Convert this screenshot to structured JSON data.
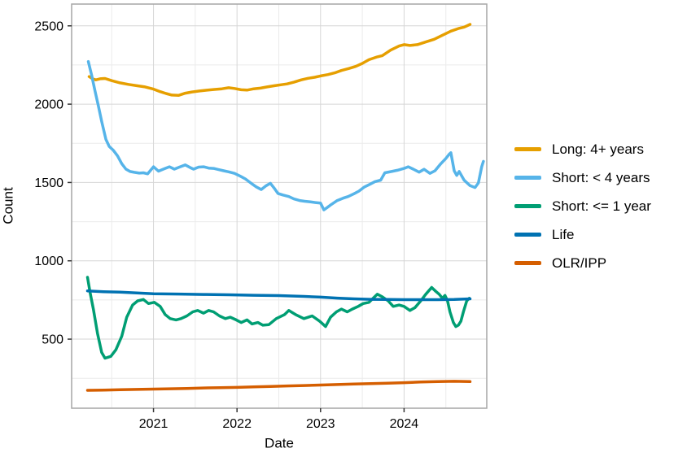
{
  "chart_data": {
    "type": "line",
    "title": "",
    "xlabel": "Date",
    "ylabel": "Count",
    "x_ticks": [
      2021,
      2022,
      2023,
      2024
    ],
    "x_tick_labels": [
      "2021",
      "2022",
      "2023",
      "2024"
    ],
    "x_minor_ticks": [
      2020.5,
      2021.5,
      2022.5,
      2023.5,
      2024.5
    ],
    "y_ticks": [
      500,
      1000,
      1500,
      2000,
      2500
    ],
    "y_tick_labels": [
      "500",
      "1000",
      "1500",
      "2000",
      "2500"
    ],
    "y_minor_ticks": [
      250,
      750,
      1250,
      1750,
      2250
    ],
    "x_range": [
      2020.02,
      2024.99
    ],
    "y_range": [
      59,
      2639
    ],
    "grid": "major+minor",
    "legend_position": "right",
    "colors": {
      "major_grid": "#d6d6d6",
      "minor_grid": "#ebebeb",
      "panel_border": "#a6a6a6",
      "tick": "#333333",
      "text": "#000000"
    },
    "series": [
      {
        "name": "Long: 4+ years",
        "color": "#E69F00",
        "points": [
          [
            2020.23,
            2176
          ],
          [
            2020.27,
            2162
          ],
          [
            2020.31,
            2155
          ],
          [
            2020.36,
            2162
          ],
          [
            2020.42,
            2164
          ],
          [
            2020.5,
            2150
          ],
          [
            2020.6,
            2136
          ],
          [
            2020.7,
            2126
          ],
          [
            2020.8,
            2118
          ],
          [
            2020.9,
            2110
          ],
          [
            2021.0,
            2096
          ],
          [
            2021.08,
            2080
          ],
          [
            2021.15,
            2068
          ],
          [
            2021.22,
            2058
          ],
          [
            2021.3,
            2056
          ],
          [
            2021.38,
            2070
          ],
          [
            2021.46,
            2078
          ],
          [
            2021.55,
            2084
          ],
          [
            2021.64,
            2089
          ],
          [
            2021.73,
            2094
          ],
          [
            2021.82,
            2098
          ],
          [
            2021.9,
            2105
          ],
          [
            2021.97,
            2100
          ],
          [
            2022.05,
            2092
          ],
          [
            2022.12,
            2090
          ],
          [
            2022.2,
            2098
          ],
          [
            2022.28,
            2102
          ],
          [
            2022.36,
            2110
          ],
          [
            2022.45,
            2118
          ],
          [
            2022.53,
            2124
          ],
          [
            2022.6,
            2129
          ],
          [
            2022.68,
            2140
          ],
          [
            2022.77,
            2155
          ],
          [
            2022.85,
            2165
          ],
          [
            2022.93,
            2172
          ],
          [
            2023.0,
            2180
          ],
          [
            2023.09,
            2189
          ],
          [
            2023.17,
            2200
          ],
          [
            2023.25,
            2215
          ],
          [
            2023.34,
            2228
          ],
          [
            2023.42,
            2241
          ],
          [
            2023.5,
            2260
          ],
          [
            2023.58,
            2284
          ],
          [
            2023.68,
            2302
          ],
          [
            2023.74,
            2310
          ],
          [
            2023.84,
            2345
          ],
          [
            2023.94,
            2371
          ],
          [
            2024.0,
            2380
          ],
          [
            2024.07,
            2375
          ],
          [
            2024.16,
            2380
          ],
          [
            2024.26,
            2397
          ],
          [
            2024.36,
            2414
          ],
          [
            2024.46,
            2440
          ],
          [
            2024.56,
            2466
          ],
          [
            2024.65,
            2483
          ],
          [
            2024.72,
            2492
          ],
          [
            2024.79,
            2509
          ]
        ]
      },
      {
        "name": "Short: < 4 years",
        "color": "#56B4E9",
        "points": [
          [
            2020.22,
            2272
          ],
          [
            2020.26,
            2185
          ],
          [
            2020.3,
            2085
          ],
          [
            2020.34,
            1990
          ],
          [
            2020.38,
            1890
          ],
          [
            2020.43,
            1775
          ],
          [
            2020.47,
            1730
          ],
          [
            2020.52,
            1705
          ],
          [
            2020.57,
            1670
          ],
          [
            2020.62,
            1620
          ],
          [
            2020.67,
            1585
          ],
          [
            2020.72,
            1570
          ],
          [
            2020.77,
            1565
          ],
          [
            2020.83,
            1560
          ],
          [
            2020.88,
            1562
          ],
          [
            2020.93,
            1555
          ],
          [
            2021.0,
            1600
          ],
          [
            2021.06,
            1572
          ],
          [
            2021.13,
            1588
          ],
          [
            2021.19,
            1600
          ],
          [
            2021.25,
            1585
          ],
          [
            2021.31,
            1598
          ],
          [
            2021.38,
            1612
          ],
          [
            2021.44,
            1595
          ],
          [
            2021.48,
            1585
          ],
          [
            2021.54,
            1598
          ],
          [
            2021.6,
            1600
          ],
          [
            2021.66,
            1592
          ],
          [
            2021.72,
            1590
          ],
          [
            2021.78,
            1582
          ],
          [
            2021.84,
            1575
          ],
          [
            2021.9,
            1568
          ],
          [
            2021.97,
            1558
          ],
          [
            2022.04,
            1540
          ],
          [
            2022.1,
            1523
          ],
          [
            2022.17,
            1495
          ],
          [
            2022.23,
            1472
          ],
          [
            2022.29,
            1455
          ],
          [
            2022.35,
            1480
          ],
          [
            2022.4,
            1495
          ],
          [
            2022.45,
            1460
          ],
          [
            2022.49,
            1430
          ],
          [
            2022.55,
            1420
          ],
          [
            2022.62,
            1410
          ],
          [
            2022.68,
            1395
          ],
          [
            2022.75,
            1385
          ],
          [
            2022.81,
            1380
          ],
          [
            2022.88,
            1376
          ],
          [
            2022.94,
            1372
          ],
          [
            2023.0,
            1368
          ],
          [
            2023.04,
            1325
          ],
          [
            2023.08,
            1340
          ],
          [
            2023.13,
            1360
          ],
          [
            2023.2,
            1385
          ],
          [
            2023.27,
            1400
          ],
          [
            2023.33,
            1410
          ],
          [
            2023.4,
            1428
          ],
          [
            2023.46,
            1445
          ],
          [
            2023.52,
            1470
          ],
          [
            2023.59,
            1488
          ],
          [
            2023.65,
            1505
          ],
          [
            2023.72,
            1515
          ],
          [
            2023.77,
            1562
          ],
          [
            2023.85,
            1570
          ],
          [
            2023.92,
            1578
          ],
          [
            2024.0,
            1590
          ],
          [
            2024.05,
            1600
          ],
          [
            2024.11,
            1585
          ],
          [
            2024.18,
            1566
          ],
          [
            2024.24,
            1584
          ],
          [
            2024.31,
            1558
          ],
          [
            2024.37,
            1575
          ],
          [
            2024.44,
            1620
          ],
          [
            2024.5,
            1653
          ],
          [
            2024.54,
            1680
          ],
          [
            2024.56,
            1690
          ],
          [
            2024.6,
            1575
          ],
          [
            2024.63,
            1545
          ],
          [
            2024.66,
            1570
          ],
          [
            2024.72,
            1514
          ],
          [
            2024.79,
            1480
          ],
          [
            2024.85,
            1468
          ],
          [
            2024.89,
            1497
          ],
          [
            2024.93,
            1601
          ],
          [
            2024.95,
            1635
          ]
        ]
      },
      {
        "name": "Short: <= 1 year",
        "color": "#009E73",
        "points": [
          [
            2020.21,
            895
          ],
          [
            2020.24,
            800
          ],
          [
            2020.28,
            692
          ],
          [
            2020.33,
            536
          ],
          [
            2020.38,
            415
          ],
          [
            2020.42,
            378
          ],
          [
            2020.46,
            385
          ],
          [
            2020.49,
            390
          ],
          [
            2020.55,
            432
          ],
          [
            2020.62,
            519
          ],
          [
            2020.68,
            640
          ],
          [
            2020.75,
            718
          ],
          [
            2020.81,
            744
          ],
          [
            2020.88,
            753
          ],
          [
            2020.94,
            727
          ],
          [
            2021.01,
            735
          ],
          [
            2021.08,
            709
          ],
          [
            2021.14,
            657
          ],
          [
            2021.2,
            631
          ],
          [
            2021.27,
            623
          ],
          [
            2021.33,
            631
          ],
          [
            2021.4,
            648
          ],
          [
            2021.47,
            674
          ],
          [
            2021.53,
            683
          ],
          [
            2021.6,
            666
          ],
          [
            2021.66,
            683
          ],
          [
            2021.72,
            674
          ],
          [
            2021.79,
            648
          ],
          [
            2021.86,
            631
          ],
          [
            2021.92,
            640
          ],
          [
            2021.99,
            623
          ],
          [
            2022.05,
            606
          ],
          [
            2022.12,
            623
          ],
          [
            2022.18,
            597
          ],
          [
            2022.25,
            606
          ],
          [
            2022.31,
            589
          ],
          [
            2022.38,
            592
          ],
          [
            2022.47,
            631
          ],
          [
            2022.57,
            657
          ],
          [
            2022.62,
            683
          ],
          [
            2022.7,
            657
          ],
          [
            2022.8,
            631
          ],
          [
            2022.9,
            648
          ],
          [
            2022.99,
            614
          ],
          [
            2023.06,
            580
          ],
          [
            2023.12,
            640
          ],
          [
            2023.19,
            674
          ],
          [
            2023.25,
            692
          ],
          [
            2023.32,
            674
          ],
          [
            2023.38,
            692
          ],
          [
            2023.45,
            709
          ],
          [
            2023.51,
            727
          ],
          [
            2023.58,
            735
          ],
          [
            2023.63,
            761
          ],
          [
            2023.68,
            787
          ],
          [
            2023.74,
            770
          ],
          [
            2023.81,
            744
          ],
          [
            2023.87,
            709
          ],
          [
            2023.94,
            718
          ],
          [
            2024.0,
            709
          ],
          [
            2024.07,
            683
          ],
          [
            2024.13,
            701
          ],
          [
            2024.2,
            744
          ],
          [
            2024.26,
            787
          ],
          [
            2024.33,
            830
          ],
          [
            2024.38,
            805
          ],
          [
            2024.42,
            787
          ],
          [
            2024.46,
            761
          ],
          [
            2024.49,
            779
          ],
          [
            2024.52,
            744
          ],
          [
            2024.55,
            674
          ],
          [
            2024.59,
            606
          ],
          [
            2024.62,
            580
          ],
          [
            2024.65,
            589
          ],
          [
            2024.68,
            614
          ],
          [
            2024.71,
            674
          ],
          [
            2024.75,
            744
          ],
          [
            2024.78,
            761
          ]
        ]
      },
      {
        "name": "Life",
        "color": "#0072B2",
        "points": [
          [
            2020.21,
            808
          ],
          [
            2020.4,
            803
          ],
          [
            2020.6,
            800
          ],
          [
            2020.8,
            795
          ],
          [
            2021.0,
            790
          ],
          [
            2021.3,
            788
          ],
          [
            2021.6,
            785
          ],
          [
            2021.9,
            783
          ],
          [
            2022.2,
            780
          ],
          [
            2022.5,
            778
          ],
          [
            2022.8,
            773
          ],
          [
            2023.0,
            768
          ],
          [
            2023.2,
            762
          ],
          [
            2023.4,
            757
          ],
          [
            2023.6,
            754
          ],
          [
            2023.8,
            753
          ],
          [
            2024.0,
            752
          ],
          [
            2024.2,
            752
          ],
          [
            2024.4,
            752
          ],
          [
            2024.6,
            753
          ],
          [
            2024.79,
            757
          ]
        ]
      },
      {
        "name": "OLR/IPP",
        "color": "#D55E00",
        "points": [
          [
            2020.21,
            173
          ],
          [
            2020.4,
            175
          ],
          [
            2020.6,
            177
          ],
          [
            2020.8,
            179
          ],
          [
            2021.0,
            181
          ],
          [
            2021.2,
            183
          ],
          [
            2021.4,
            185
          ],
          [
            2021.6,
            188
          ],
          [
            2021.8,
            190
          ],
          [
            2022.0,
            192
          ],
          [
            2022.2,
            195
          ],
          [
            2022.4,
            198
          ],
          [
            2022.6,
            201
          ],
          [
            2022.8,
            204
          ],
          [
            2023.0,
            207
          ],
          [
            2023.2,
            210
          ],
          [
            2023.4,
            213
          ],
          [
            2023.6,
            216
          ],
          [
            2023.8,
            219
          ],
          [
            2024.0,
            222
          ],
          [
            2024.2,
            226
          ],
          [
            2024.4,
            229
          ],
          [
            2024.6,
            231
          ],
          [
            2024.79,
            229
          ]
        ]
      }
    ]
  }
}
